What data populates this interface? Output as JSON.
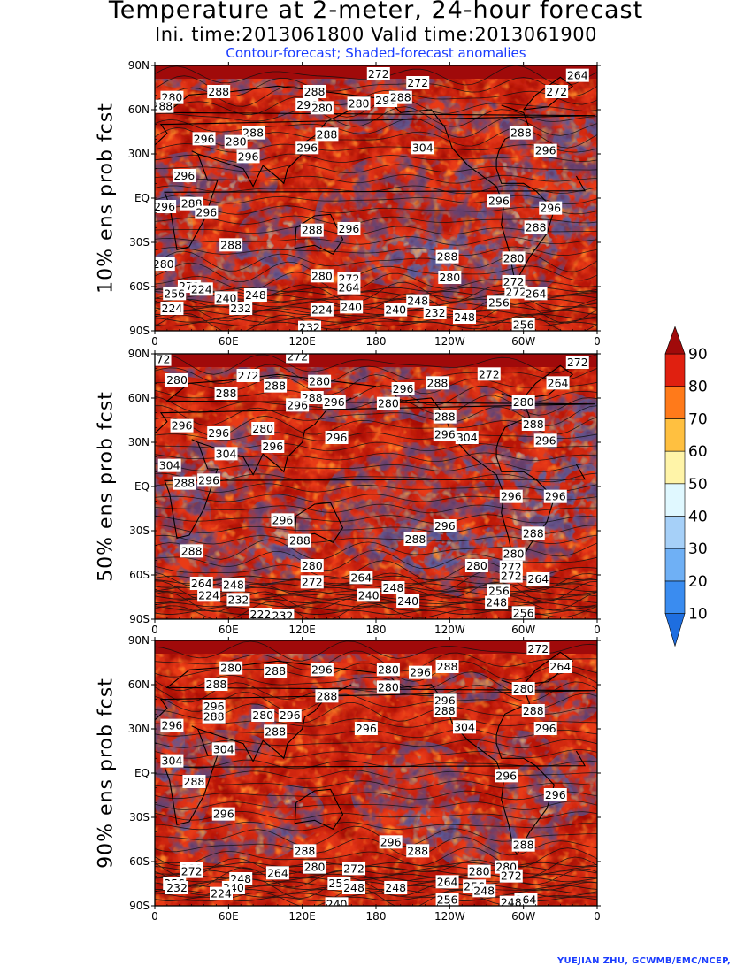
{
  "titles": {
    "main": "Temperature at 2-meter, 24-hour forecast",
    "times": "Ini. time:2013061800    Valid time:2013061900",
    "subtitle": "Contour-forecast; Shaded-forecast anomalies"
  },
  "credit": "YUEJIAN ZHU, GCWMB/EMC/NCEP,",
  "axes": {
    "lat_ticks": [
      "90N",
      "60N",
      "30N",
      "EQ",
      "30S",
      "60S",
      "90S"
    ],
    "lon_ticks": [
      "0",
      "60E",
      "120E",
      "180",
      "120W",
      "60W",
      "0"
    ]
  },
  "colorbar": {
    "labels": [
      "10",
      "20",
      "30",
      "40",
      "50",
      "60",
      "70",
      "80",
      "90"
    ],
    "colors": [
      "#1e6ee0",
      "#3a8cf0",
      "#6fb0f5",
      "#a6d0f8",
      "#e0f8ff",
      "#fff4a8",
      "#ffc040",
      "#ff7a1a",
      "#e02010",
      "#a00a0a"
    ]
  },
  "panels": [
    {
      "label": "10% ens prob fcst",
      "contour_labels": [
        {
          "t": "272",
          "lon": 182,
          "lat": 84
        },
        {
          "t": "272",
          "lon": 214,
          "lat": 78
        },
        {
          "t": "264",
          "lon": 344,
          "lat": 83
        },
        {
          "t": "280",
          "lon": 14,
          "lat": 68
        },
        {
          "t": "288",
          "lon": 6,
          "lat": 62
        },
        {
          "t": "288",
          "lon": 52,
          "lat": 72
        },
        {
          "t": "288",
          "lon": 130,
          "lat": 72
        },
        {
          "t": "296",
          "lon": 124,
          "lat": 63
        },
        {
          "t": "280",
          "lon": 136,
          "lat": 61
        },
        {
          "t": "280",
          "lon": 166,
          "lat": 64
        },
        {
          "t": "296",
          "lon": 188,
          "lat": 66
        },
        {
          "t": "288",
          "lon": 200,
          "lat": 68
        },
        {
          "t": "272",
          "lon": 327,
          "lat": 72
        },
        {
          "t": "288",
          "lon": 80,
          "lat": 44
        },
        {
          "t": "280",
          "lon": 66,
          "lat": 38
        },
        {
          "t": "296",
          "lon": 40,
          "lat": 40
        },
        {
          "t": "296",
          "lon": 76,
          "lat": 28
        },
        {
          "t": "288",
          "lon": 140,
          "lat": 43
        },
        {
          "t": "296",
          "lon": 124,
          "lat": 34
        },
        {
          "t": "304",
          "lon": 218,
          "lat": 34
        },
        {
          "t": "288",
          "lon": 298,
          "lat": 44
        },
        {
          "t": "296",
          "lon": 318,
          "lat": 32
        },
        {
          "t": "296",
          "lon": 24,
          "lat": 15
        },
        {
          "t": "296",
          "lon": 8,
          "lat": -6
        },
        {
          "t": "288",
          "lon": 30,
          "lat": -4
        },
        {
          "t": "296",
          "lon": 42,
          "lat": -10
        },
        {
          "t": "296",
          "lon": 280,
          "lat": -2
        },
        {
          "t": "296",
          "lon": 322,
          "lat": -7
        },
        {
          "t": "288",
          "lon": 310,
          "lat": -20
        },
        {
          "t": "288",
          "lon": 62,
          "lat": -32
        },
        {
          "t": "288",
          "lon": 128,
          "lat": -22
        },
        {
          "t": "296",
          "lon": 158,
          "lat": -21
        },
        {
          "t": "288",
          "lon": 238,
          "lat": -40
        },
        {
          "t": "280",
          "lon": 292,
          "lat": -41
        },
        {
          "t": "280",
          "lon": 7,
          "lat": -45
        },
        {
          "t": "280",
          "lon": 136,
          "lat": -53
        },
        {
          "t": "272",
          "lon": 158,
          "lat": -55
        },
        {
          "t": "264",
          "lon": 158,
          "lat": -61
        },
        {
          "t": "272",
          "lon": 28,
          "lat": -60
        },
        {
          "t": "256",
          "lon": 16,
          "lat": -65
        },
        {
          "t": "224",
          "lon": 38,
          "lat": -62
        },
        {
          "t": "240",
          "lon": 58,
          "lat": -68
        },
        {
          "t": "248",
          "lon": 82,
          "lat": -66
        },
        {
          "t": "232",
          "lon": 70,
          "lat": -75
        },
        {
          "t": "224",
          "lon": 14,
          "lat": -75
        },
        {
          "t": "224",
          "lon": 136,
          "lat": -76
        },
        {
          "t": "240",
          "lon": 160,
          "lat": -74
        },
        {
          "t": "248",
          "lon": 214,
          "lat": -70
        },
        {
          "t": "232",
          "lon": 228,
          "lat": -78
        },
        {
          "t": "248",
          "lon": 252,
          "lat": -81
        },
        {
          "t": "256",
          "lon": 280,
          "lat": -71
        },
        {
          "t": "272",
          "lon": 292,
          "lat": -57
        },
        {
          "t": "272",
          "lon": 294,
          "lat": -64
        },
        {
          "t": "264",
          "lon": 310,
          "lat": -65
        },
        {
          "t": "256",
          "lon": 300,
          "lat": -86
        },
        {
          "t": "232",
          "lon": 126,
          "lat": -88
        },
        {
          "t": "240",
          "lon": 196,
          "lat": -76
        },
        {
          "t": "280",
          "lon": 240,
          "lat": -54
        }
      ]
    },
    {
      "label": "50% ens prob fcst",
      "contour_labels": [
        {
          "t": "272",
          "lon": 4,
          "lat": 86
        },
        {
          "t": "272",
          "lon": 116,
          "lat": 88
        },
        {
          "t": "272",
          "lon": 272,
          "lat": 76
        },
        {
          "t": "272",
          "lon": 344,
          "lat": 84
        },
        {
          "t": "280",
          "lon": 18,
          "lat": 72
        },
        {
          "t": "272",
          "lon": 76,
          "lat": 75
        },
        {
          "t": "288",
          "lon": 58,
          "lat": 63
        },
        {
          "t": "288",
          "lon": 98,
          "lat": 68
        },
        {
          "t": "280",
          "lon": 134,
          "lat": 71
        },
        {
          "t": "296",
          "lon": 146,
          "lat": 57
        },
        {
          "t": "288",
          "lon": 128,
          "lat": 60
        },
        {
          "t": "296",
          "lon": 116,
          "lat": 55
        },
        {
          "t": "280",
          "lon": 190,
          "lat": 56
        },
        {
          "t": "296",
          "lon": 202,
          "lat": 66
        },
        {
          "t": "288",
          "lon": 230,
          "lat": 70
        },
        {
          "t": "264",
          "lon": 328,
          "lat": 70
        },
        {
          "t": "280",
          "lon": 300,
          "lat": 57
        },
        {
          "t": "288",
          "lon": 236,
          "lat": 47
        },
        {
          "t": "288",
          "lon": 308,
          "lat": 42
        },
        {
          "t": "296",
          "lon": 22,
          "lat": 41
        },
        {
          "t": "296",
          "lon": 52,
          "lat": 36
        },
        {
          "t": "280",
          "lon": 88,
          "lat": 39
        },
        {
          "t": "296",
          "lon": 96,
          "lat": 27
        },
        {
          "t": "304",
          "lon": 58,
          "lat": 22
        },
        {
          "t": "296",
          "lon": 148,
          "lat": 33
        },
        {
          "t": "304",
          "lon": 254,
          "lat": 33
        },
        {
          "t": "296",
          "lon": 236,
          "lat": 35
        },
        {
          "t": "296",
          "lon": 318,
          "lat": 31
        },
        {
          "t": "304",
          "lon": 12,
          "lat": 14
        },
        {
          "t": "288",
          "lon": 24,
          "lat": 2
        },
        {
          "t": "296",
          "lon": 44,
          "lat": 4
        },
        {
          "t": "296",
          "lon": 290,
          "lat": -7
        },
        {
          "t": "296",
          "lon": 326,
          "lat": -7
        },
        {
          "t": "296",
          "lon": 104,
          "lat": -23
        },
        {
          "t": "288",
          "lon": 118,
          "lat": -37
        },
        {
          "t": "296",
          "lon": 236,
          "lat": -27
        },
        {
          "t": "288",
          "lon": 212,
          "lat": -36
        },
        {
          "t": "288",
          "lon": 308,
          "lat": -32
        },
        {
          "t": "288",
          "lon": 30,
          "lat": -44
        },
        {
          "t": "280",
          "lon": 128,
          "lat": -54
        },
        {
          "t": "280",
          "lon": 292,
          "lat": -46
        },
        {
          "t": "280",
          "lon": 262,
          "lat": -54
        },
        {
          "t": "272",
          "lon": 290,
          "lat": -55
        },
        {
          "t": "272",
          "lon": 290,
          "lat": -61
        },
        {
          "t": "264",
          "lon": 312,
          "lat": -63
        },
        {
          "t": "272",
          "lon": 128,
          "lat": -65
        },
        {
          "t": "264",
          "lon": 168,
          "lat": -62
        },
        {
          "t": "248",
          "lon": 194,
          "lat": -69
        },
        {
          "t": "264",
          "lon": 38,
          "lat": -66
        },
        {
          "t": "248",
          "lon": 64,
          "lat": -67
        },
        {
          "t": "224",
          "lon": 44,
          "lat": -74
        },
        {
          "t": "232",
          "lon": 68,
          "lat": -77
        },
        {
          "t": "240",
          "lon": 206,
          "lat": -78
        },
        {
          "t": "240",
          "lon": 174,
          "lat": -74
        },
        {
          "t": "256",
          "lon": 280,
          "lat": -71
        },
        {
          "t": "248",
          "lon": 278,
          "lat": -79
        },
        {
          "t": "256",
          "lon": 300,
          "lat": -86
        },
        {
          "t": "232",
          "lon": 104,
          "lat": -88
        },
        {
          "t": "222",
          "lon": 86,
          "lat": -87
        }
      ]
    },
    {
      "label": "90% ens prob fcst",
      "contour_labels": [
        {
          "t": "272",
          "lon": 312,
          "lat": 84
        },
        {
          "t": "280",
          "lon": 62,
          "lat": 71
        },
        {
          "t": "288",
          "lon": 98,
          "lat": 69
        },
        {
          "t": "296",
          "lon": 136,
          "lat": 70
        },
        {
          "t": "280",
          "lon": 190,
          "lat": 70
        },
        {
          "t": "296",
          "lon": 216,
          "lat": 68
        },
        {
          "t": "288",
          "lon": 238,
          "lat": 72
        },
        {
          "t": "264",
          "lon": 330,
          "lat": 72
        },
        {
          "t": "288",
          "lon": 50,
          "lat": 60
        },
        {
          "t": "280",
          "lon": 190,
          "lat": 58
        },
        {
          "t": "288",
          "lon": 140,
          "lat": 52
        },
        {
          "t": "280",
          "lon": 300,
          "lat": 57
        },
        {
          "t": "296",
          "lon": 236,
          "lat": 49
        },
        {
          "t": "288",
          "lon": 236,
          "lat": 42
        },
        {
          "t": "288",
          "lon": 308,
          "lat": 42
        },
        {
          "t": "296",
          "lon": 48,
          "lat": 45
        },
        {
          "t": "288",
          "lon": 48,
          "lat": 38
        },
        {
          "t": "280",
          "lon": 88,
          "lat": 39
        },
        {
          "t": "296",
          "lon": 110,
          "lat": 39
        },
        {
          "t": "288",
          "lon": 98,
          "lat": 28
        },
        {
          "t": "296",
          "lon": 172,
          "lat": 30
        },
        {
          "t": "304",
          "lon": 252,
          "lat": 31
        },
        {
          "t": "296",
          "lon": 318,
          "lat": 30
        },
        {
          "t": "296",
          "lon": 14,
          "lat": 32
        },
        {
          "t": "304",
          "lon": 14,
          "lat": 8
        },
        {
          "t": "304",
          "lon": 56,
          "lat": 16
        },
        {
          "t": "288",
          "lon": 32,
          "lat": -6
        },
        {
          "t": "296",
          "lon": 286,
          "lat": -2
        },
        {
          "t": "296",
          "lon": 326,
          "lat": -15
        },
        {
          "t": "296",
          "lon": 56,
          "lat": -28
        },
        {
          "t": "296",
          "lon": 192,
          "lat": -47
        },
        {
          "t": "288",
          "lon": 214,
          "lat": -53
        },
        {
          "t": "288",
          "lon": 122,
          "lat": -53
        },
        {
          "t": "288",
          "lon": 300,
          "lat": -49
        },
        {
          "t": "288",
          "lon": 30,
          "lat": -65
        },
        {
          "t": "280",
          "lon": 130,
          "lat": -64
        },
        {
          "t": "280",
          "lon": 286,
          "lat": -64
        },
        {
          "t": "280",
          "lon": 264,
          "lat": -67
        },
        {
          "t": "272",
          "lon": 162,
          "lat": -65
        },
        {
          "t": "272",
          "lon": 290,
          "lat": -70
        },
        {
          "t": "272",
          "lon": 30,
          "lat": -67
        },
        {
          "t": "264",
          "lon": 100,
          "lat": -68
        },
        {
          "t": "248",
          "lon": 70,
          "lat": -72
        },
        {
          "t": "256",
          "lon": 16,
          "lat": -75
        },
        {
          "t": "232",
          "lon": 18,
          "lat": -78
        },
        {
          "t": "240",
          "lon": 64,
          "lat": -78
        },
        {
          "t": "224",
          "lon": 54,
          "lat": -82
        },
        {
          "t": "256",
          "lon": 150,
          "lat": -75
        },
        {
          "t": "248",
          "lon": 162,
          "lat": -78
        },
        {
          "t": "248",
          "lon": 196,
          "lat": -78
        },
        {
          "t": "264",
          "lon": 238,
          "lat": -74
        },
        {
          "t": "256",
          "lon": 260,
          "lat": -77
        },
        {
          "t": "248",
          "lon": 268,
          "lat": -80
        },
        {
          "t": "264",
          "lon": 302,
          "lat": -86
        },
        {
          "t": "240",
          "lon": 148,
          "lat": -89
        },
        {
          "t": "256",
          "lon": 238,
          "lat": -86
        },
        {
          "t": "248",
          "lon": 290,
          "lat": -88
        }
      ]
    }
  ]
}
